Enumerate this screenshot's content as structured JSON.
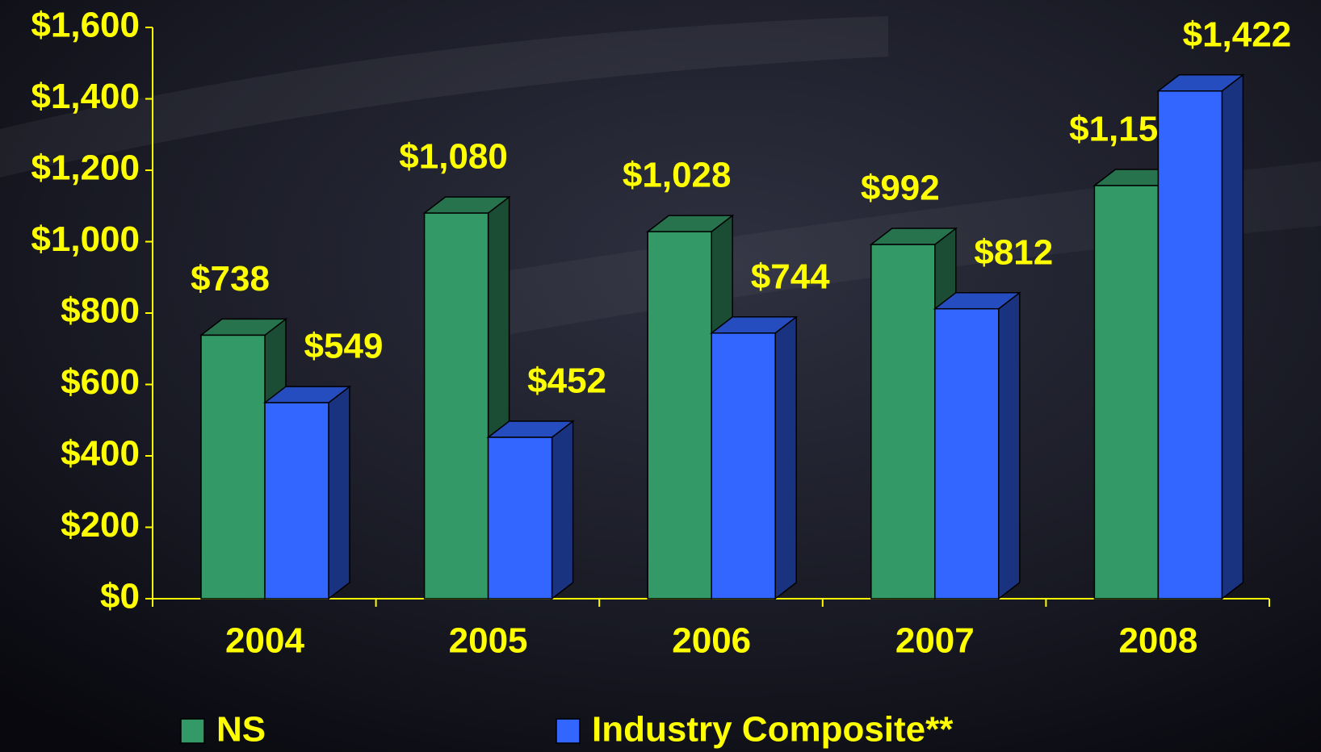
{
  "chart_data": {
    "type": "bar3d",
    "categories": [
      "2004",
      "2005",
      "2006",
      "2007",
      "2008"
    ],
    "series": [
      {
        "name": "NS",
        "color": "#339966",
        "values": [
          738,
          1080,
          1028,
          992,
          1157
        ],
        "value_labels": [
          "$738",
          "$1,080",
          "$1,028",
          "$992",
          "$1,157"
        ]
      },
      {
        "name": "Industry Composite**",
        "color": "#3366ff",
        "values": [
          549,
          452,
          744,
          812,
          1422
        ],
        "value_labels": [
          "$549",
          "$452",
          "$744",
          "$812",
          "$1,422"
        ]
      }
    ],
    "ylim": [
      0,
      1600
    ],
    "yticks": [
      {
        "value": 0,
        "label": "$0"
      },
      {
        "value": 200,
        "label": "$200"
      },
      {
        "value": 400,
        "label": "$400"
      },
      {
        "value": 600,
        "label": "$600"
      },
      {
        "value": 800,
        "label": "$800"
      },
      {
        "value": 1000,
        "label": "$1,000"
      },
      {
        "value": 1200,
        "label": "$1,200"
      },
      {
        "value": 1400,
        "label": "$1,400"
      },
      {
        "value": 1600,
        "label": "$1,600"
      }
    ],
    "legend": "bottom"
  }
}
